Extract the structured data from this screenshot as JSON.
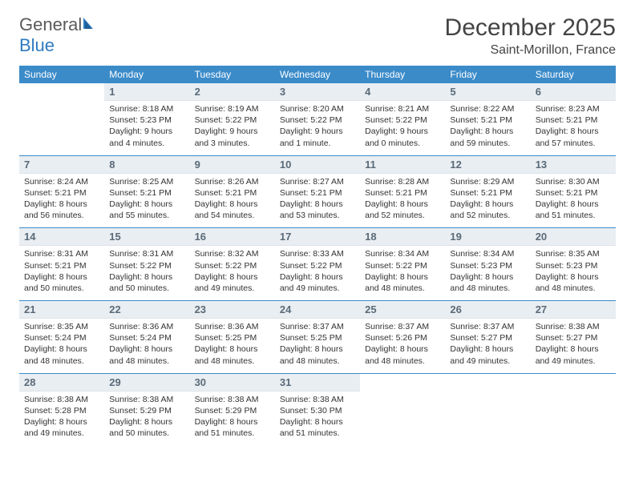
{
  "brand": {
    "part1": "General",
    "part2": "Blue"
  },
  "title": "December 2025",
  "location": "Saint-Morillon, France",
  "colors": {
    "header_bg": "#3b8bc9",
    "header_text": "#ffffff",
    "daynum_bg": "#e9eef2",
    "daynum_text": "#5a6a78",
    "body_text": "#333333",
    "rule": "#3b8bc9",
    "logo_gray": "#5a5a5a",
    "logo_blue": "#2f7bbf"
  },
  "day_labels": [
    "Sunday",
    "Monday",
    "Tuesday",
    "Wednesday",
    "Thursday",
    "Friday",
    "Saturday"
  ],
  "weeks": [
    [
      {
        "n": "",
        "sr": "",
        "ss": "",
        "dl": ""
      },
      {
        "n": "1",
        "sr": "Sunrise: 8:18 AM",
        "ss": "Sunset: 5:23 PM",
        "dl": "Daylight: 9 hours and 4 minutes."
      },
      {
        "n": "2",
        "sr": "Sunrise: 8:19 AM",
        "ss": "Sunset: 5:22 PM",
        "dl": "Daylight: 9 hours and 3 minutes."
      },
      {
        "n": "3",
        "sr": "Sunrise: 8:20 AM",
        "ss": "Sunset: 5:22 PM",
        "dl": "Daylight: 9 hours and 1 minute."
      },
      {
        "n": "4",
        "sr": "Sunrise: 8:21 AM",
        "ss": "Sunset: 5:22 PM",
        "dl": "Daylight: 9 hours and 0 minutes."
      },
      {
        "n": "5",
        "sr": "Sunrise: 8:22 AM",
        "ss": "Sunset: 5:21 PM",
        "dl": "Daylight: 8 hours and 59 minutes."
      },
      {
        "n": "6",
        "sr": "Sunrise: 8:23 AM",
        "ss": "Sunset: 5:21 PM",
        "dl": "Daylight: 8 hours and 57 minutes."
      }
    ],
    [
      {
        "n": "7",
        "sr": "Sunrise: 8:24 AM",
        "ss": "Sunset: 5:21 PM",
        "dl": "Daylight: 8 hours and 56 minutes."
      },
      {
        "n": "8",
        "sr": "Sunrise: 8:25 AM",
        "ss": "Sunset: 5:21 PM",
        "dl": "Daylight: 8 hours and 55 minutes."
      },
      {
        "n": "9",
        "sr": "Sunrise: 8:26 AM",
        "ss": "Sunset: 5:21 PM",
        "dl": "Daylight: 8 hours and 54 minutes."
      },
      {
        "n": "10",
        "sr": "Sunrise: 8:27 AM",
        "ss": "Sunset: 5:21 PM",
        "dl": "Daylight: 8 hours and 53 minutes."
      },
      {
        "n": "11",
        "sr": "Sunrise: 8:28 AM",
        "ss": "Sunset: 5:21 PM",
        "dl": "Daylight: 8 hours and 52 minutes."
      },
      {
        "n": "12",
        "sr": "Sunrise: 8:29 AM",
        "ss": "Sunset: 5:21 PM",
        "dl": "Daylight: 8 hours and 52 minutes."
      },
      {
        "n": "13",
        "sr": "Sunrise: 8:30 AM",
        "ss": "Sunset: 5:21 PM",
        "dl": "Daylight: 8 hours and 51 minutes."
      }
    ],
    [
      {
        "n": "14",
        "sr": "Sunrise: 8:31 AM",
        "ss": "Sunset: 5:21 PM",
        "dl": "Daylight: 8 hours and 50 minutes."
      },
      {
        "n": "15",
        "sr": "Sunrise: 8:31 AM",
        "ss": "Sunset: 5:22 PM",
        "dl": "Daylight: 8 hours and 50 minutes."
      },
      {
        "n": "16",
        "sr": "Sunrise: 8:32 AM",
        "ss": "Sunset: 5:22 PM",
        "dl": "Daylight: 8 hours and 49 minutes."
      },
      {
        "n": "17",
        "sr": "Sunrise: 8:33 AM",
        "ss": "Sunset: 5:22 PM",
        "dl": "Daylight: 8 hours and 49 minutes."
      },
      {
        "n": "18",
        "sr": "Sunrise: 8:34 AM",
        "ss": "Sunset: 5:22 PM",
        "dl": "Daylight: 8 hours and 48 minutes."
      },
      {
        "n": "19",
        "sr": "Sunrise: 8:34 AM",
        "ss": "Sunset: 5:23 PM",
        "dl": "Daylight: 8 hours and 48 minutes."
      },
      {
        "n": "20",
        "sr": "Sunrise: 8:35 AM",
        "ss": "Sunset: 5:23 PM",
        "dl": "Daylight: 8 hours and 48 minutes."
      }
    ],
    [
      {
        "n": "21",
        "sr": "Sunrise: 8:35 AM",
        "ss": "Sunset: 5:24 PM",
        "dl": "Daylight: 8 hours and 48 minutes."
      },
      {
        "n": "22",
        "sr": "Sunrise: 8:36 AM",
        "ss": "Sunset: 5:24 PM",
        "dl": "Daylight: 8 hours and 48 minutes."
      },
      {
        "n": "23",
        "sr": "Sunrise: 8:36 AM",
        "ss": "Sunset: 5:25 PM",
        "dl": "Daylight: 8 hours and 48 minutes."
      },
      {
        "n": "24",
        "sr": "Sunrise: 8:37 AM",
        "ss": "Sunset: 5:25 PM",
        "dl": "Daylight: 8 hours and 48 minutes."
      },
      {
        "n": "25",
        "sr": "Sunrise: 8:37 AM",
        "ss": "Sunset: 5:26 PM",
        "dl": "Daylight: 8 hours and 48 minutes."
      },
      {
        "n": "26",
        "sr": "Sunrise: 8:37 AM",
        "ss": "Sunset: 5:27 PM",
        "dl": "Daylight: 8 hours and 49 minutes."
      },
      {
        "n": "27",
        "sr": "Sunrise: 8:38 AM",
        "ss": "Sunset: 5:27 PM",
        "dl": "Daylight: 8 hours and 49 minutes."
      }
    ],
    [
      {
        "n": "28",
        "sr": "Sunrise: 8:38 AM",
        "ss": "Sunset: 5:28 PM",
        "dl": "Daylight: 8 hours and 49 minutes."
      },
      {
        "n": "29",
        "sr": "Sunrise: 8:38 AM",
        "ss": "Sunset: 5:29 PM",
        "dl": "Daylight: 8 hours and 50 minutes."
      },
      {
        "n": "30",
        "sr": "Sunrise: 8:38 AM",
        "ss": "Sunset: 5:29 PM",
        "dl": "Daylight: 8 hours and 51 minutes."
      },
      {
        "n": "31",
        "sr": "Sunrise: 8:38 AM",
        "ss": "Sunset: 5:30 PM",
        "dl": "Daylight: 8 hours and 51 minutes."
      },
      {
        "n": "",
        "sr": "",
        "ss": "",
        "dl": ""
      },
      {
        "n": "",
        "sr": "",
        "ss": "",
        "dl": ""
      },
      {
        "n": "",
        "sr": "",
        "ss": "",
        "dl": ""
      }
    ]
  ]
}
